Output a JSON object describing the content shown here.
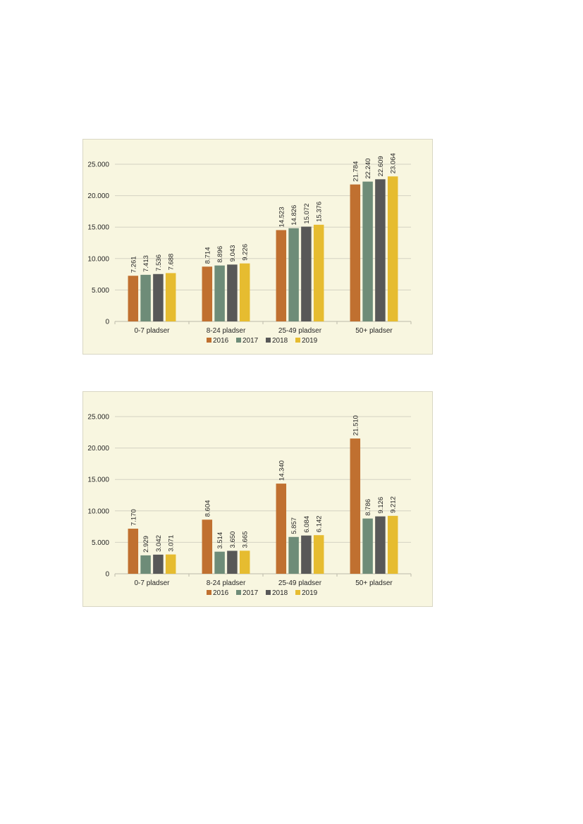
{
  "colors": {
    "2016": "#c07030",
    "2017": "#6e8c78",
    "2018": "#585858",
    "2019": "#e6bc30"
  },
  "chart_data": [
    {
      "type": "bar",
      "categories": [
        "0-7 pladser",
        "8-24 pladser",
        "25-49 pladser",
        "50+ pladser"
      ],
      "ylim": [
        0,
        25000
      ],
      "yticks": [
        "0",
        "5.000",
        "10.000",
        "15.000",
        "20.000",
        "25.000"
      ],
      "legend_position": "bottom",
      "grid": true,
      "series": [
        {
          "name": "2016",
          "values": [
            7261,
            8714,
            14523,
            21784
          ],
          "labels": [
            "7.261",
            "8.714",
            "14.523",
            "21.784"
          ]
        },
        {
          "name": "2017",
          "values": [
            7413,
            8896,
            14826,
            22240
          ],
          "labels": [
            "7.413",
            "8.896",
            "14.826",
            "22.240"
          ]
        },
        {
          "name": "2018",
          "values": [
            7536,
            9043,
            15072,
            22609
          ],
          "labels": [
            "7.536",
            "9.043",
            "15.072",
            "22.609"
          ]
        },
        {
          "name": "2019",
          "values": [
            7688,
            9226,
            15376,
            23064
          ],
          "labels": [
            "7.688",
            "9.226",
            "15.376",
            "23.064"
          ]
        }
      ]
    },
    {
      "type": "bar",
      "categories": [
        "0-7 pladser",
        "8-24 pladser",
        "25-49 pladser",
        "50+ pladser"
      ],
      "ylim": [
        0,
        25000
      ],
      "yticks": [
        "0",
        "5.000",
        "10.000",
        "15.000",
        "20.000",
        "25.000"
      ],
      "legend_position": "bottom",
      "grid": true,
      "series": [
        {
          "name": "2016",
          "values": [
            7170,
            8604,
            14340,
            21510
          ],
          "labels": [
            "7.170",
            "8.604",
            "14.340",
            "21.510"
          ]
        },
        {
          "name": "2017",
          "values": [
            2929,
            3514,
            5857,
            8786
          ],
          "labels": [
            "2.929",
            "3.514",
            "5.857",
            "8.786"
          ]
        },
        {
          "name": "2018",
          "values": [
            3042,
            3650,
            6084,
            9126
          ],
          "labels": [
            "3.042",
            "3.650",
            "6.084",
            "9.126"
          ]
        },
        {
          "name": "2019",
          "values": [
            3071,
            3665,
            6142,
            9212
          ],
          "labels": [
            "3.071",
            "3.665",
            "6.142",
            "9.212"
          ]
        }
      ]
    }
  ]
}
